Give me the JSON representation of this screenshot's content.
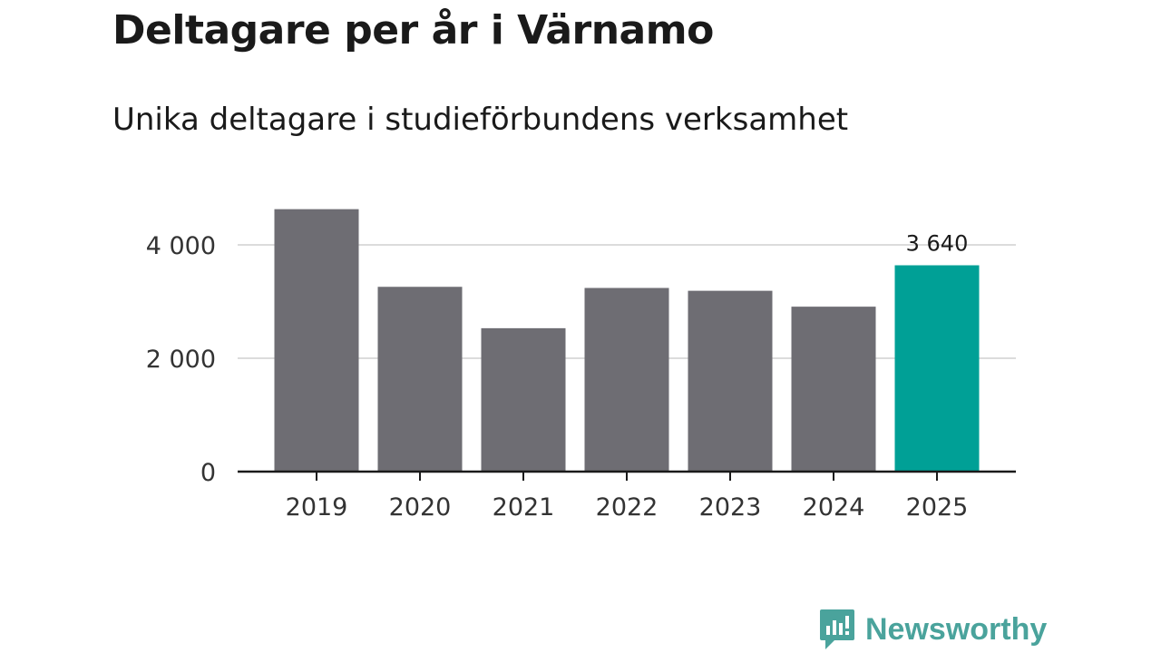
{
  "chart_data": {
    "type": "bar",
    "title": "Deltagare per år i Värnamo",
    "subtitle": "Unika deltagare i studieförbundens verksamhet",
    "categories": [
      "2019",
      "2020",
      "2021",
      "2022",
      "2023",
      "2024",
      "2025"
    ],
    "values": [
      4630,
      3260,
      2530,
      3240,
      3190,
      2910,
      3640
    ],
    "highlight_index": 6,
    "highlight_label": "3 640",
    "yticks": [
      0,
      2000,
      4000
    ],
    "ytick_labels": [
      "0",
      "2 000",
      "4 000"
    ],
    "ylim": [
      0,
      4800
    ],
    "xlabel": "",
    "ylabel": "",
    "grid": true,
    "colors": {
      "bar": "#6e6d73",
      "highlight": "#00a096",
      "grid": "#dcdcdc",
      "axis": "#1a1a1a"
    }
  },
  "brand": {
    "name": "Newsworthy",
    "icon": "newsworthy-logo-icon",
    "color": "#4aa39c"
  }
}
